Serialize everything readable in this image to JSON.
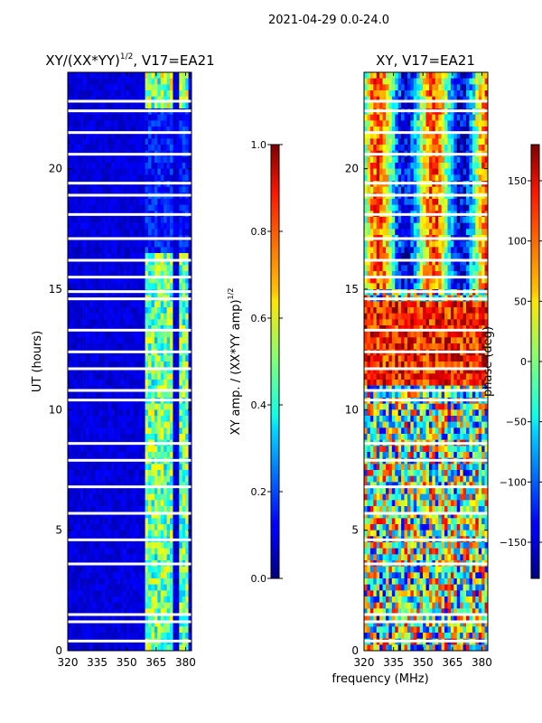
{
  "figure_title": "2021-04-29 0.0-24.0",
  "shared_xlabel": "frequency (MHz)",
  "chart_data": [
    {
      "type": "heatmap",
      "title_main": "XY/(XX*YY)",
      "title_exp": "1/2",
      "title_tail": ", V17=EA21",
      "ylabel": "UT (hours)",
      "xlim": [
        320,
        383
      ],
      "ylim": [
        0,
        24
      ],
      "xticks": [
        320,
        335,
        350,
        365,
        380
      ],
      "yticks": [
        0,
        5,
        10,
        15,
        20
      ],
      "colormap": "jet",
      "grid": false,
      "colorbar": {
        "label_main": "XY amp. / (XX*YY amp)",
        "label_exp": "1/2",
        "range": [
          0.0,
          1.0
        ],
        "ticks": [
          0.0,
          0.2,
          0.4,
          0.6,
          0.8,
          1.0
        ],
        "tick_labels": [
          "0.0",
          "0.2",
          "0.4",
          "0.6",
          "0.8",
          "1.0"
        ]
      },
      "bright_band_mhz": [
        [
          359,
          364
        ],
        [
          363,
          374
        ],
        [
          377,
          382
        ]
      ],
      "gap_ut_hours": [
        0.4,
        1.2,
        1.5,
        3.6,
        4.6,
        5.7,
        6.8,
        7.9,
        8.6,
        10.4,
        10.8,
        11.7,
        12.4,
        13.3,
        14.6,
        14.9,
        15.5,
        16.2,
        17.1,
        18.1,
        18.9,
        19.4,
        20.6,
        21.5,
        22.4,
        22.8
      ]
    },
    {
      "type": "heatmap",
      "title_main": "XY, V17=EA21",
      "ylabel": "",
      "xlim": [
        320,
        383
      ],
      "ylim": [
        0,
        24
      ],
      "xticks": [
        320,
        335,
        350,
        365,
        380
      ],
      "yticks": [
        0,
        5,
        10,
        15,
        20
      ],
      "colormap": "jet",
      "grid": false,
      "colorbar": {
        "label_main": "phase (deg)",
        "range": [
          -180,
          180
        ],
        "ticks": [
          -150,
          -100,
          -50,
          0,
          50,
          100,
          150
        ],
        "tick_labels": [
          "−150",
          "−100",
          "−50",
          "0",
          "50",
          "100",
          "150"
        ]
      },
      "gap_ut_hours": [
        0.4,
        1.2,
        1.5,
        3.6,
        4.6,
        5.7,
        6.8,
        7.9,
        8.6,
        10.4,
        10.8,
        11.7,
        12.4,
        13.3,
        14.6,
        14.9,
        15.5,
        16.2,
        17.1,
        18.1,
        18.9,
        19.4,
        20.6,
        21.5,
        22.4,
        22.8
      ]
    }
  ]
}
